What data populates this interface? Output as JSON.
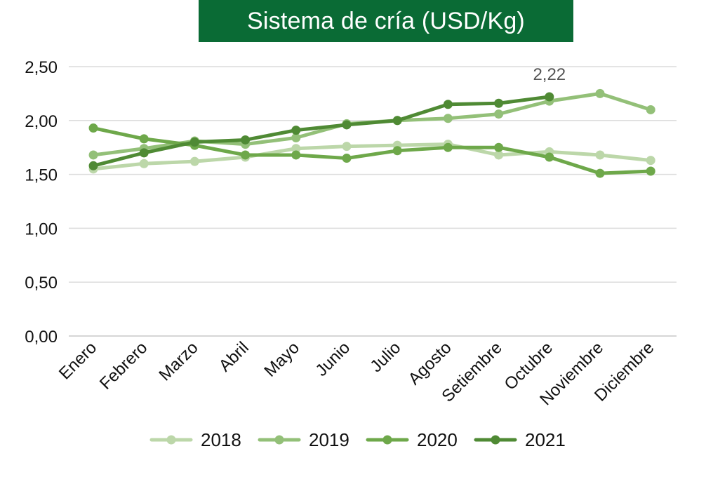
{
  "chart_data": {
    "type": "line",
    "title": "Sistema de cría (USD/Kg)",
    "categories": [
      "Enero",
      "Febrero",
      "Marzo",
      "Abril",
      "Mayo",
      "Junio",
      "Julio",
      "Agosto",
      "Setiembre",
      "Octubre",
      "Noviembre",
      "Diciembre"
    ],
    "yticks": [
      "0,00",
      "0,50",
      "1,00",
      "1,50",
      "2,00",
      "2,50"
    ],
    "ylim": [
      0,
      2.5
    ],
    "grid": true,
    "legend_position": "bottom",
    "series": [
      {
        "name": "2018",
        "color": "#bcd7a9",
        "values": [
          1.55,
          1.6,
          1.62,
          1.66,
          1.74,
          1.76,
          1.77,
          1.78,
          1.68,
          1.71,
          1.68,
          1.63
        ]
      },
      {
        "name": "2019",
        "color": "#93c078",
        "values": [
          1.68,
          1.74,
          1.81,
          1.78,
          1.84,
          1.97,
          2.0,
          2.02,
          2.06,
          2.18,
          2.25,
          2.1
        ]
      },
      {
        "name": "2020",
        "color": "#6ea84a",
        "values": [
          1.93,
          1.83,
          1.77,
          1.68,
          1.68,
          1.65,
          1.72,
          1.75,
          1.75,
          1.66,
          1.51,
          1.53
        ]
      },
      {
        "name": "2021",
        "color": "#4f8a34",
        "values": [
          1.58,
          1.7,
          1.8,
          1.82,
          1.91,
          1.96,
          2.0,
          2.15,
          2.16,
          2.22,
          null,
          null
        ]
      }
    ],
    "annotations": [
      {
        "series": "2021",
        "category": "Octubre",
        "text": "2,22"
      }
    ]
  }
}
